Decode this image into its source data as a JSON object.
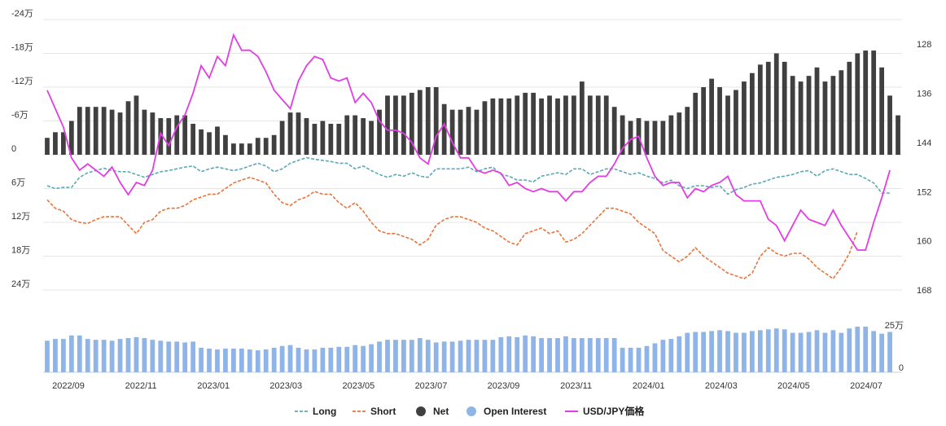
{
  "chart_data": {
    "type": "bar",
    "colors": {
      "long": "#5ba8b8",
      "short": "#e8743b",
      "net": "#404040",
      "open_interest": "#8fb4e8",
      "usdjpy": "#e23de2",
      "grid": "#e6e6e6"
    },
    "left_axis": {
      "ticks": [
        24,
        18,
        12,
        6,
        0,
        -6,
        -12,
        -18,
        -24
      ],
      "labels": [
        "24万",
        "18万",
        "12万",
        "6万",
        "0",
        "-6万",
        "-12万",
        "-18万",
        "-24万"
      ],
      "range": [
        -24,
        24
      ],
      "unit": "万"
    },
    "right_axis": {
      "ticks": [
        128,
        136,
        144,
        152,
        160,
        168
      ],
      "labels": [
        "128",
        "136",
        "144",
        "152",
        "160",
        "168"
      ],
      "range": [
        168,
        124
      ],
      "inverted": true
    },
    "oi_axis": {
      "ticks": [
        25,
        0
      ],
      "labels": [
        "25万",
        "0"
      ],
      "range": [
        0,
        33
      ]
    },
    "x_axis": {
      "labels": [
        "2022/09",
        "2022/11",
        "2023/01",
        "2023/03",
        "2023/05",
        "2023/07",
        "2023/09",
        "2023/11",
        "2024/01",
        "2024/03",
        "2024/05",
        "2024/07"
      ]
    },
    "legend": [
      {
        "key": "long",
        "label": "Long",
        "marker": "dashed-line"
      },
      {
        "key": "short",
        "label": "Short",
        "marker": "dashed-line"
      },
      {
        "key": "net",
        "label": "Net",
        "marker": "circle"
      },
      {
        "key": "open_interest",
        "label": "Open Interest",
        "marker": "circle"
      },
      {
        "key": "usdjpy",
        "label": "USD/JPY価格",
        "marker": "line"
      }
    ],
    "series": [
      {
        "name": "Long",
        "values": [
          5.5,
          6.0,
          5.8,
          5.8,
          4.0,
          3.2,
          2.8,
          2.4,
          2.8,
          3.0,
          3.0,
          3.5,
          4.0,
          3.5,
          3.0,
          2.8,
          2.5,
          2.2,
          2.0,
          3.0,
          2.5,
          2.2,
          2.5,
          2.8,
          2.5,
          2.0,
          1.5,
          2.0,
          3.0,
          2.5,
          1.5,
          1.0,
          0.5,
          0.8,
          1.0,
          1.2,
          1.5,
          1.5,
          2.5,
          2.0,
          2.8,
          3.5,
          4.0,
          3.5,
          3.8,
          3.2,
          3.8,
          4.0,
          2.5,
          2.5,
          2.5,
          2.5,
          2.2,
          3.0,
          2.5,
          2.2,
          3.5,
          3.8,
          4.5,
          4.5,
          4.8,
          3.8,
          3.5,
          3.2,
          3.5,
          2.5,
          2.5,
          3.5,
          3.0,
          2.5,
          2.5,
          3.0,
          3.5,
          3.2,
          3.8,
          4.2,
          5.0,
          4.5,
          5.5,
          6.0,
          5.5,
          5.5,
          5.8,
          5.5,
          7.0,
          6.2,
          5.8,
          5.2,
          5.0,
          4.5,
          4.0,
          3.8,
          3.5,
          3.0,
          2.8,
          3.8,
          2.8,
          2.5,
          3.0,
          3.5,
          3.5,
          4.2,
          5.0,
          6.8,
          6.8
        ]
      },
      {
        "name": "Short",
        "values": [
          8.0,
          9.5,
          10.0,
          11.5,
          12.0,
          12.2,
          11.5,
          11.0,
          11.0,
          11.0,
          12.5,
          14.0,
          12.0,
          11.5,
          10.0,
          9.5,
          9.5,
          9.0,
          8.0,
          7.5,
          7.0,
          7.0,
          6.0,
          5.0,
          4.5,
          4.0,
          4.5,
          5.0,
          7.0,
          8.5,
          9.0,
          8.0,
          7.5,
          6.5,
          7.0,
          7.0,
          8.5,
          9.5,
          8.5,
          10.0,
          12.0,
          13.5,
          14.0,
          14.0,
          14.5,
          15.0,
          16.0,
          15.0,
          12.5,
          11.5,
          11.0,
          11.0,
          11.5,
          12.0,
          13.0,
          13.5,
          14.5,
          15.5,
          16.0,
          14.0,
          13.5,
          13.0,
          14.0,
          13.5,
          15.5,
          15.0,
          14.0,
          12.5,
          11.0,
          9.5,
          9.5,
          10.0,
          10.5,
          12.0,
          13.0,
          14.0,
          17.0,
          18.0,
          19.0,
          18.0,
          16.5,
          18.0,
          19.0,
          20.0,
          21.0,
          21.5,
          22.0,
          21.0,
          18.0,
          16.5,
          17.5,
          18.0,
          17.5,
          17.5,
          18.5,
          20.0,
          21.0,
          22.0,
          20.0,
          17.5,
          13.5
        ]
      },
      {
        "name": "Net",
        "values": [
          -3.0,
          -4.0,
          -4.0,
          -6.0,
          -8.5,
          -8.5,
          -8.5,
          -8.5,
          -8.0,
          -7.5,
          -9.5,
          -10.5,
          -8.0,
          -7.5,
          -6.5,
          -6.5,
          -7.0,
          -7.0,
          -5.5,
          -4.5,
          -4.0,
          -5.0,
          -3.5,
          -2.0,
          -2.0,
          -2.0,
          -3.0,
          -3.0,
          -3.5,
          -6.0,
          -7.5,
          -7.5,
          -6.5,
          -5.5,
          -6.0,
          -5.5,
          -5.5,
          -7.0,
          -7.0,
          -6.5,
          -6.0,
          -8.0,
          -10.5,
          -10.5,
          -10.5,
          -11.0,
          -11.5,
          -12.0,
          -12.0,
          -9.0,
          -8.0,
          -8.0,
          -8.5,
          -8.0,
          -9.5,
          -10.0,
          -10.0,
          -10.0,
          -10.5,
          -11.0,
          -11.0,
          -10.0,
          -10.5,
          -10.0,
          -10.5,
          -10.5,
          -13.0,
          -10.5,
          -10.5,
          -10.5,
          -8.5,
          -7.0,
          -6.0,
          -6.5,
          -6.0,
          -6.0,
          -6.0,
          -7.0,
          -7.5,
          -8.5,
          -11.0,
          -12.0,
          -13.5,
          -12.0,
          -10.5,
          -11.5,
          -13.0,
          -14.5,
          -16.0,
          -16.5,
          -18.0,
          -16.5,
          -14.0,
          -13.0,
          -14.0,
          -15.5,
          -13.0,
          -14.0,
          -15.0,
          -16.5,
          -18.0,
          -18.5,
          -18.5,
          -15.5,
          -10.5,
          -7.0
        ]
      },
      {
        "name": "Open Interest",
        "values": [
          18.0,
          19.0,
          19.0,
          21.0,
          21.0,
          19.0,
          18.5,
          18.5,
          18.0,
          19.0,
          19.5,
          20.0,
          19.5,
          18.5,
          18.0,
          17.5,
          17.5,
          17.0,
          17.5,
          14.0,
          13.5,
          13.0,
          13.5,
          13.5,
          13.5,
          13.0,
          12.5,
          13.0,
          14.0,
          15.0,
          15.5,
          14.0,
          13.0,
          13.0,
          14.0,
          14.0,
          14.5,
          14.5,
          15.5,
          15.0,
          16.0,
          17.5,
          18.5,
          18.5,
          18.5,
          18.5,
          19.5,
          18.5,
          17.0,
          17.5,
          17.5,
          18.0,
          18.5,
          18.5,
          18.5,
          18.5,
          20.0,
          20.5,
          20.0,
          21.0,
          20.5,
          19.5,
          19.5,
          19.5,
          20.5,
          19.5,
          19.5,
          19.5,
          19.5,
          19.5,
          19.5,
          14.0,
          14.0,
          14.0,
          15.0,
          16.5,
          18.5,
          19.0,
          20.5,
          22.5,
          23.0,
          23.0,
          23.5,
          24.0,
          23.5,
          22.5,
          22.5,
          23.5,
          24.0,
          24.5,
          25.0,
          24.5,
          22.5,
          22.5,
          23.0,
          24.0,
          22.5,
          24.0,
          22.5,
          25.0,
          26.0,
          26.0,
          23.5,
          22.0,
          23.0
        ]
      },
      {
        "name": "USD/JPY価格",
        "values": [
          135.5,
          138.5,
          141.5,
          146.5,
          148.5,
          147.5,
          148.5,
          149.5,
          148.0,
          150.5,
          152.5,
          150.5,
          151.0,
          148.5,
          142.5,
          144.5,
          141.5,
          139.5,
          136.0,
          131.5,
          133.5,
          130.0,
          131.5,
          126.5,
          129.0,
          129.0,
          130.0,
          132.5,
          135.5,
          137.0,
          138.5,
          134.0,
          131.5,
          130.0,
          130.5,
          133.5,
          134.0,
          133.5,
          137.5,
          136.0,
          137.5,
          140.5,
          142.0,
          142.0,
          142.5,
          144.0,
          146.5,
          147.5,
          143.0,
          141.0,
          144.0,
          146.5,
          146.5,
          148.5,
          149.0,
          148.5,
          149.0,
          151.0,
          150.5,
          151.5,
          152.0,
          151.5,
          152.0,
          152.0,
          153.5,
          152.0,
          152.0,
          150.5,
          149.5,
          149.5,
          147.5,
          145.0,
          143.5,
          143.0,
          146.5,
          149.5,
          151.0,
          150.5,
          150.5,
          153.0,
          151.5,
          152.0,
          151.0,
          150.5,
          149.5,
          152.5,
          153.5,
          153.5,
          153.5,
          156.5,
          157.5,
          160.0,
          157.5,
          155.0,
          156.5,
          157.0,
          157.5,
          155.0,
          157.5,
          159.5,
          161.5,
          161.5,
          157.0,
          153.0,
          148.5
        ]
      }
    ]
  }
}
